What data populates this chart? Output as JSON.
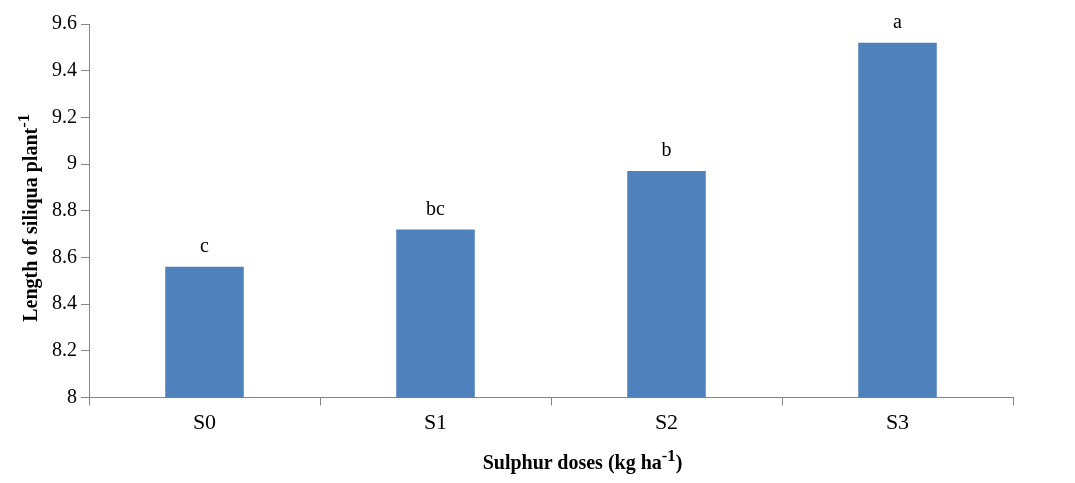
{
  "chart_data": {
    "type": "bar",
    "xlabel": "Sulphur doses (kg ha$^{-1}$)",
    "ylabel": "Length of siliqua plant$^{-1}$",
    "categories": [
      "S0",
      "S1",
      "S2",
      "S3"
    ],
    "values": [
      8.56,
      8.72,
      8.97,
      9.52
    ],
    "color": "#4f81bd",
    "ylim": [
      8,
      9.6
    ],
    "yticks": [
      8,
      8.2,
      8.4,
      8.6,
      8.8,
      9,
      9.2,
      9.4,
      9.6
    ],
    "annotations": [
      {
        "text": "c",
        "x": "S0",
        "y": 8.56
      },
      {
        "text": "bc",
        "x": "S1",
        "y": 8.72
      },
      {
        "text": "b",
        "x": "S2",
        "y": 8.97
      },
      {
        "text": "a",
        "x": "S3",
        "y": 9.52
      }
    ]
  }
}
